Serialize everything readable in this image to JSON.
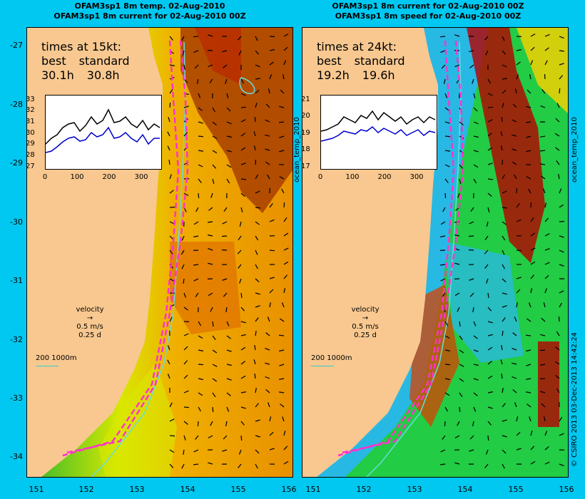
{
  "titles": {
    "left": [
      "OFAM3sp1 8m temp. 02-Aug-2010",
      "OFAM3sp1 8m current for 02-Aug-2010 00Z"
    ],
    "right": [
      "OFAM3sp1 8m current for 02-Aug-2010 00Z",
      "OFAM3sp1 8m speed for 02-Aug-2010 00Z"
    ]
  },
  "axes": {
    "y_ticks": [
      "-27",
      "-28",
      "-29",
      "-30",
      "-31",
      "-32",
      "-33",
      "-34"
    ],
    "x_ticks": [
      "151",
      "152",
      "153",
      "154",
      "155",
      "156"
    ]
  },
  "left_panel": {
    "stats_title": "times at 15kt:",
    "col1_header": "best",
    "col2_header": "standard",
    "col1_value": "30.1h",
    "col2_value": "30.8h",
    "inset_y_ticks": [
      "33",
      "32",
      "31",
      "30",
      "29",
      "28",
      "27"
    ],
    "inset_x_ticks": [
      "0",
      "100",
      "200",
      "300"
    ]
  },
  "right_panel": {
    "stats_title": "times at 24kt:",
    "col1_header": "best",
    "col2_header": "standard",
    "col1_value": "19.2h",
    "col2_value": "19.6h",
    "inset_y_ticks": [
      "21",
      "20",
      "19",
      "18",
      "17"
    ],
    "inset_x_ticks": [
      "0",
      "100",
      "200",
      "300"
    ]
  },
  "legend": {
    "label": "velocity",
    "speed": "0.5 m/s",
    "time": "0.25 d",
    "scale": "200  1000m"
  },
  "side_labels": {
    "colorbar_left": "ocean_temp_2010",
    "colorbar_right": "ocean_temp_2010",
    "credit": "© CSIRO 2013   03-Dec-2013 14:42:24"
  },
  "colors": {
    "background": "#00c8f0",
    "land": "#f8c890",
    "route": "#ff33cc",
    "inset_best": "#0000cc",
    "inset_standard": "#000000",
    "contour": "#66dddd"
  }
}
